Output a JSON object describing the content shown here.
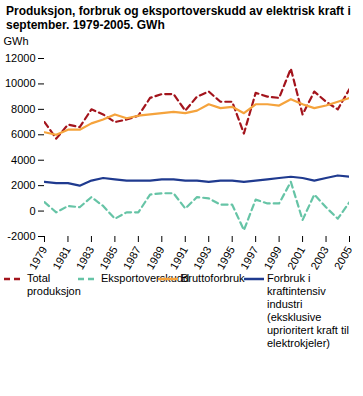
{
  "chart_data": {
    "type": "line",
    "title": "Produksjon, forbruk og eksportoverskudd av elektrisk kraft i september. 1979-2005. GWh",
    "y_label": "GWh",
    "x": [
      1979,
      1980,
      1981,
      1982,
      1983,
      1984,
      1985,
      1986,
      1987,
      1988,
      1989,
      1990,
      1991,
      1992,
      1993,
      1994,
      1995,
      1996,
      1997,
      1998,
      1999,
      2000,
      2001,
      2002,
      2003,
      2004,
      2005
    ],
    "xlim": [
      1979,
      2005
    ],
    "xticks": [
      1979,
      1981,
      1983,
      1985,
      1987,
      1989,
      1991,
      1993,
      1995,
      1997,
      1999,
      2001,
      2003,
      2005
    ],
    "ylim": [
      -2000,
      12000
    ],
    "yticks": [
      -2000,
      0,
      2000,
      4000,
      6000,
      8000,
      10000,
      12000
    ],
    "grid": false,
    "legend": "bottom",
    "series": [
      {
        "name": "Total produksjon",
        "color": "#a3141c",
        "line_style": "dashed",
        "values": [
          7000,
          5700,
          6800,
          6600,
          8000,
          7600,
          7000,
          7200,
          7500,
          8900,
          9200,
          9200,
          7900,
          9000,
          9400,
          8600,
          8600,
          6100,
          9300,
          9000,
          8900,
          11200,
          7600,
          9400,
          8600,
          8000,
          9600
        ]
      },
      {
        "name": "Eksportoverskudd",
        "color": "#66c4a6",
        "line_style": "dashed",
        "values": [
          700,
          -100,
          400,
          300,
          1100,
          400,
          -600,
          -100,
          -100,
          1300,
          1400,
          1400,
          200,
          1100,
          1000,
          500,
          500,
          -1500,
          900,
          600,
          600,
          2300,
          -700,
          1300,
          300,
          -600,
          700
        ]
      },
      {
        "name": "Bruttoforbruk",
        "color": "#f5a33c",
        "line_style": "solid",
        "values": [
          6200,
          6000,
          6400,
          6400,
          6900,
          7200,
          7600,
          7300,
          7500,
          7600,
          7700,
          7800,
          7700,
          7900,
          8400,
          8100,
          8200,
          7700,
          8400,
          8400,
          8300,
          8800,
          8400,
          8100,
          8300,
          8600,
          8900
        ]
      },
      {
        "name": "Forbruk i kraftintensiv industri (eksklusive uprioritert kraft til elektrokjeler)",
        "color": "#1f3a8f",
        "line_style": "solid",
        "values": [
          2300,
          2200,
          2200,
          2000,
          2400,
          2600,
          2500,
          2400,
          2400,
          2400,
          2500,
          2500,
          2400,
          2400,
          2300,
          2400,
          2400,
          2300,
          2400,
          2500,
          2600,
          2700,
          2600,
          2400,
          2600,
          2800,
          2700
        ]
      }
    ]
  }
}
